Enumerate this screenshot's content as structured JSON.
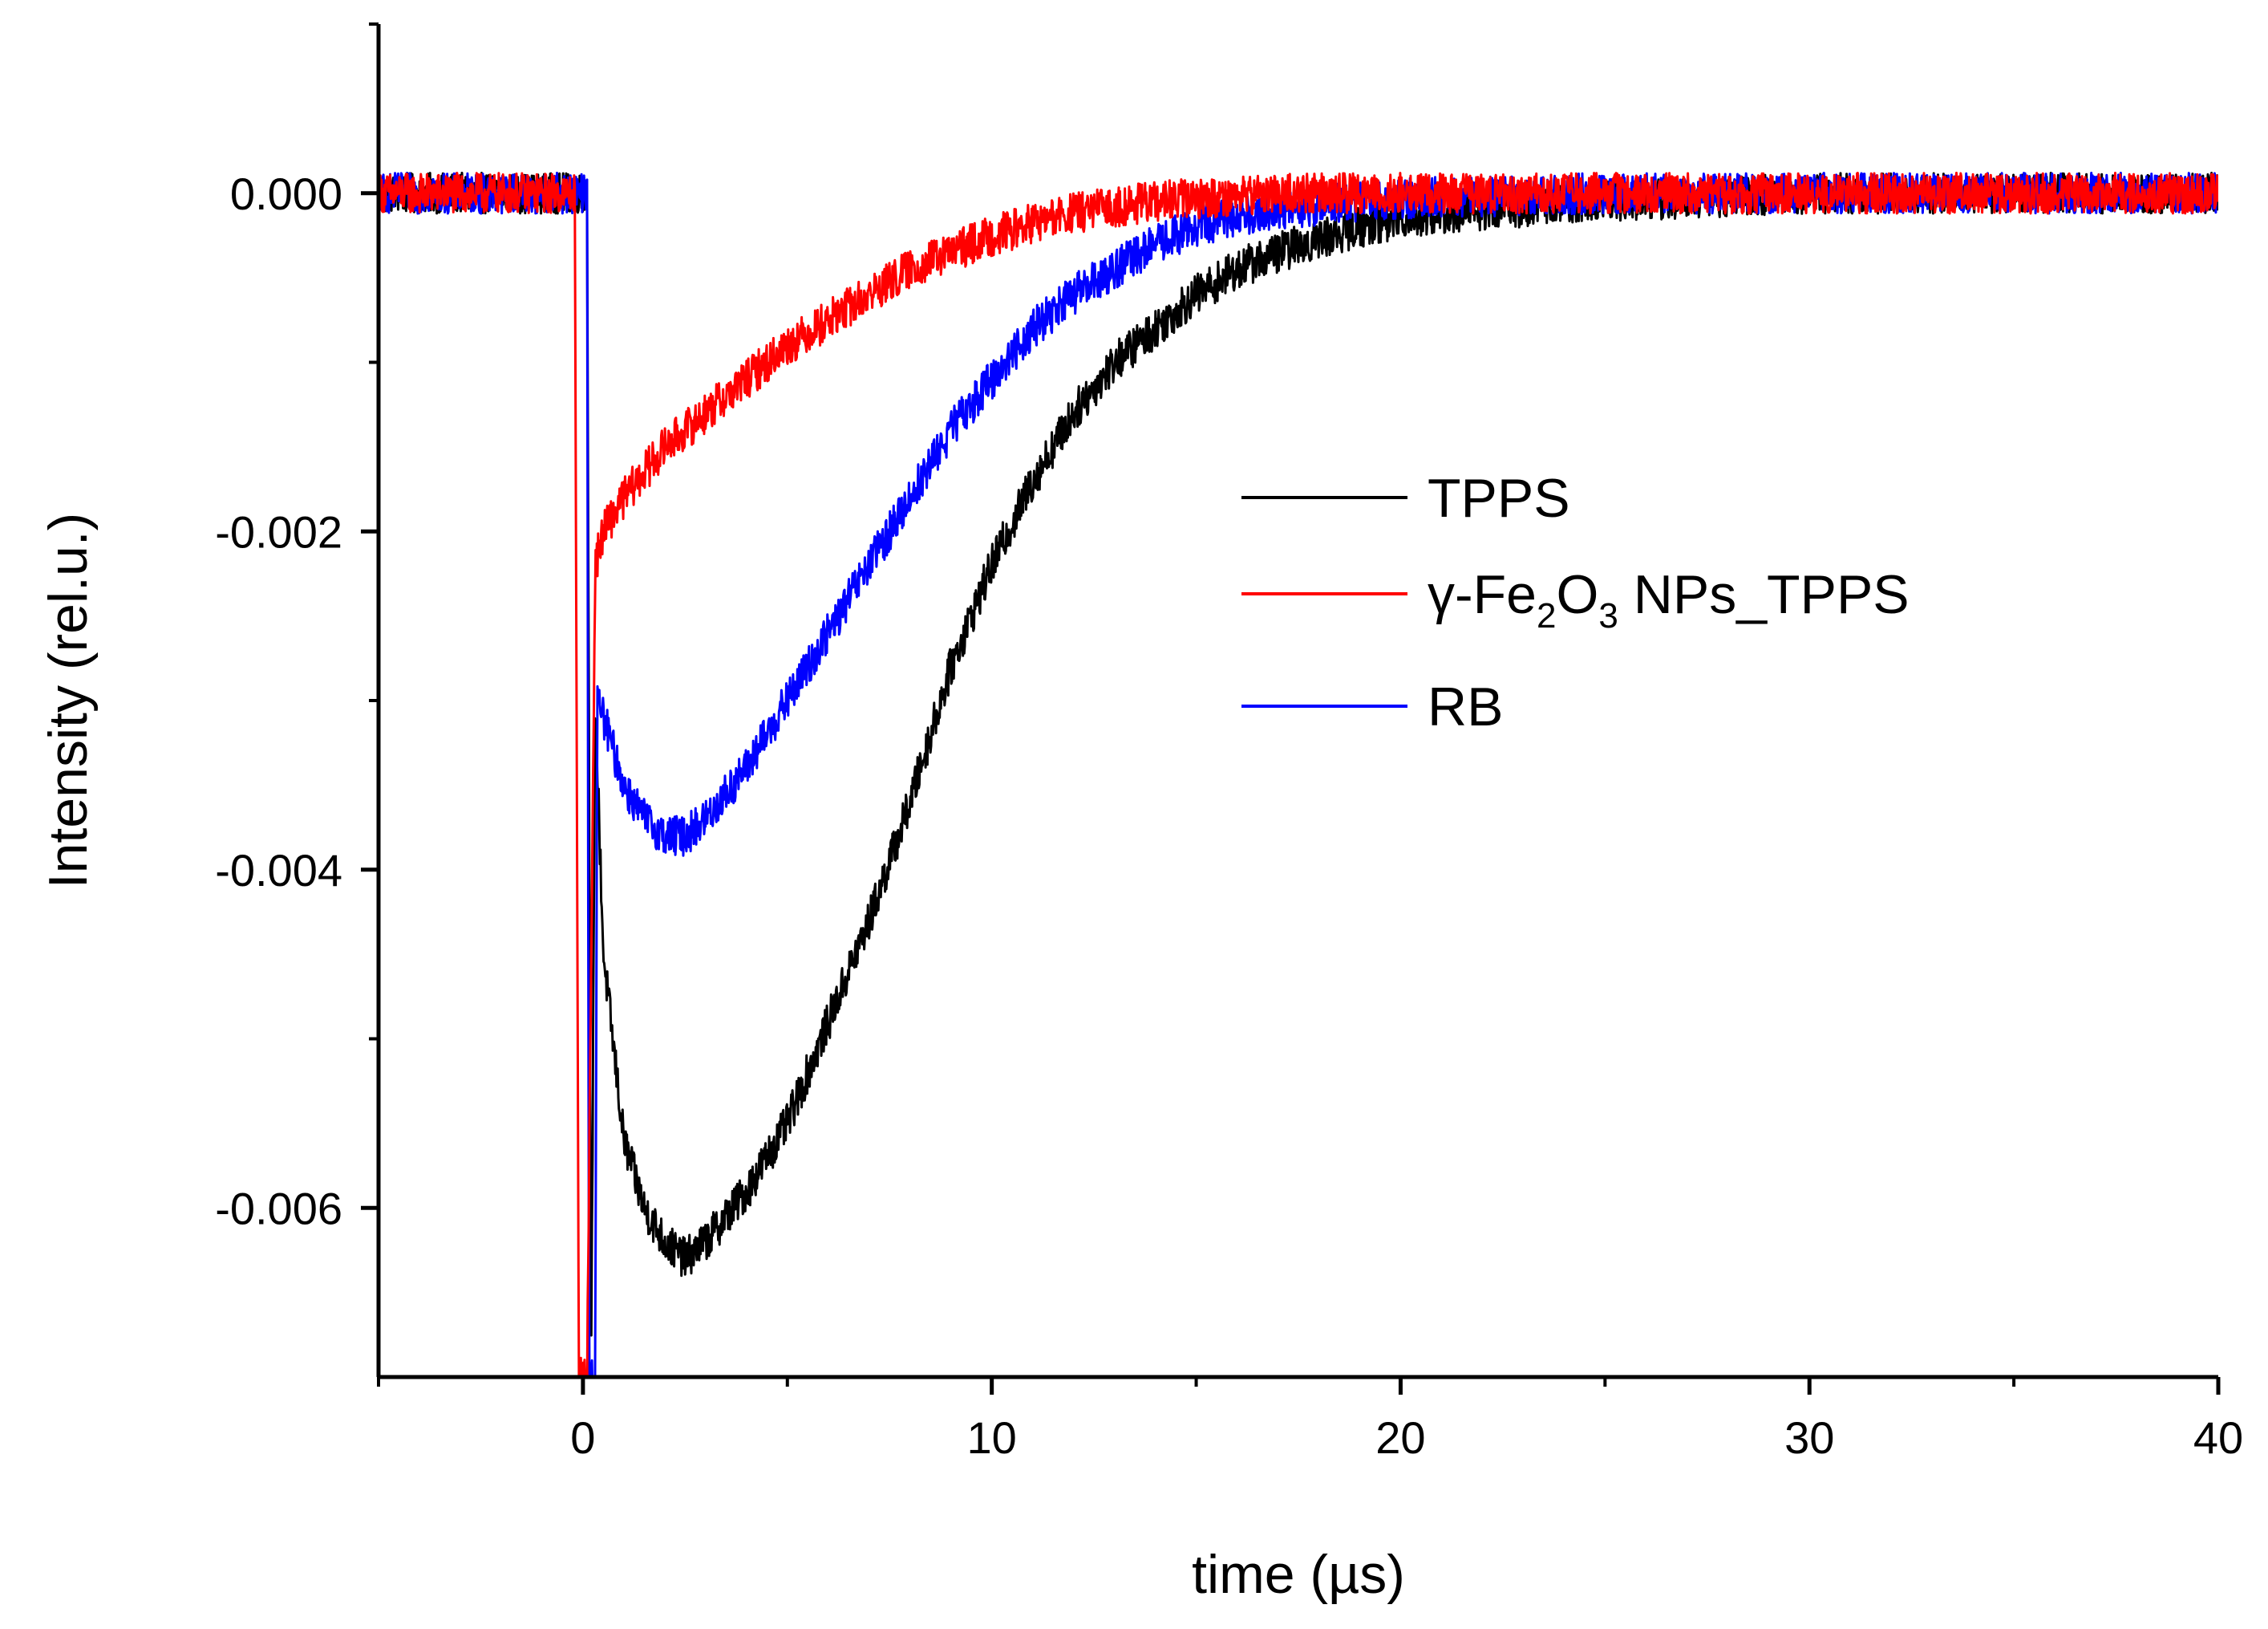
{
  "chart_data": {
    "type": "line",
    "title": "",
    "xlabel": "time (µs)",
    "ylabel": "Intensity (rel.u.)",
    "xlim": [
      -5,
      40
    ],
    "ylim": [
      -0.007,
      0.001
    ],
    "x_ticks": [
      0,
      10,
      20,
      30,
      40
    ],
    "x_tick_labels": [
      "0",
      "10",
      "20",
      "30",
      "40"
    ],
    "x_minor_ticks": [
      -5,
      5,
      15,
      25,
      35
    ],
    "y_ticks": [
      0,
      -0.002,
      -0.004,
      -0.006
    ],
    "y_tick_labels": [
      "0.000",
      "-0.002",
      "-0.004",
      "-0.006"
    ],
    "y_minor_ticks": [
      0.001,
      -0.001,
      -0.003,
      -0.005
    ],
    "grid": false,
    "legend_position": "center-right",
    "series": [
      {
        "name": "TPPS",
        "legend_parts": {
          "main": "TPPS"
        },
        "color": "#000000",
        "noise": 0.00012,
        "x": [
          -5,
          0.1,
          0.2,
          0.3,
          0.5,
          1.0,
          1.5,
          2.0,
          2.5,
          3.0,
          4.0,
          5.0,
          6.0,
          7.0,
          8.0,
          9.0,
          10.0,
          11.0,
          12.0,
          13.0,
          14.0,
          15.0,
          16.0,
          17.0,
          18.0,
          19.0,
          20.0,
          22.0,
          25.0,
          30.0,
          35.0,
          40.0
        ],
        "y": [
          0,
          0,
          -0.007,
          -0.003,
          -0.0045,
          -0.0056,
          -0.006,
          -0.0062,
          -0.0063,
          -0.0062,
          -0.0059,
          -0.0055,
          -0.0049,
          -0.0043,
          -0.0036,
          -0.0028,
          -0.0022,
          -0.0017,
          -0.0013,
          -0.001,
          -0.0008,
          -0.0006,
          -0.00045,
          -0.00035,
          -0.00027,
          -0.0002,
          -0.00015,
          -0.0001,
          -5e-05,
          0,
          0,
          0
        ]
      },
      {
        "name": "γ-Fe2O3 NPs_TPPS",
        "legend_parts": {
          "pre": "γ-Fe",
          "sub1": "2",
          "mid": "O",
          "sub2": "3",
          "post": " NPs_TPPS"
        },
        "color": "#ff0000",
        "noise": 0.00012,
        "x": [
          -5,
          -0.2,
          -0.1,
          0.1,
          0.3,
          0.5,
          1.0,
          2.0,
          3.0,
          4.0,
          5.0,
          6.0,
          7.0,
          8.0,
          9.0,
          10.0,
          11.0,
          12.0,
          13.0,
          14.0,
          15.0,
          17.0,
          20.0,
          25.0,
          30.0,
          35.0,
          40.0
        ],
        "y": [
          0,
          0,
          -0.007,
          -0.007,
          -0.0022,
          -0.002,
          -0.0018,
          -0.0015,
          -0.0013,
          -0.0011,
          -0.0009,
          -0.00075,
          -0.0006,
          -0.00045,
          -0.00035,
          -0.00025,
          -0.00018,
          -0.00012,
          -8e-05,
          -5e-05,
          -3e-05,
          0,
          0,
          0,
          0,
          0,
          0
        ]
      },
      {
        "name": "RB",
        "legend_parts": {
          "main": "RB"
        },
        "color": "#0000ff",
        "noise": 0.00012,
        "x": [
          -5,
          0.1,
          0.15,
          0.3,
          0.35,
          0.5,
          1.0,
          1.5,
          2.0,
          2.5,
          3.0,
          4.0,
          5.0,
          6.0,
          7.0,
          8.0,
          9.0,
          10.0,
          11.0,
          12.0,
          13.0,
          14.0,
          15.0,
          16.0,
          18.0,
          20.0,
          25.0,
          30.0,
          35.0,
          40.0
        ],
        "y": [
          0,
          0,
          -0.007,
          -0.007,
          -0.003,
          -0.0031,
          -0.0035,
          -0.0037,
          -0.0038,
          -0.0038,
          -0.0037,
          -0.0034,
          -0.003,
          -0.0026,
          -0.0022,
          -0.0018,
          -0.0014,
          -0.0011,
          -0.0008,
          -0.0006,
          -0.00045,
          -0.0003,
          -0.0002,
          -0.00013,
          -7e-05,
          -3e-05,
          0,
          0,
          0,
          0
        ]
      }
    ]
  }
}
